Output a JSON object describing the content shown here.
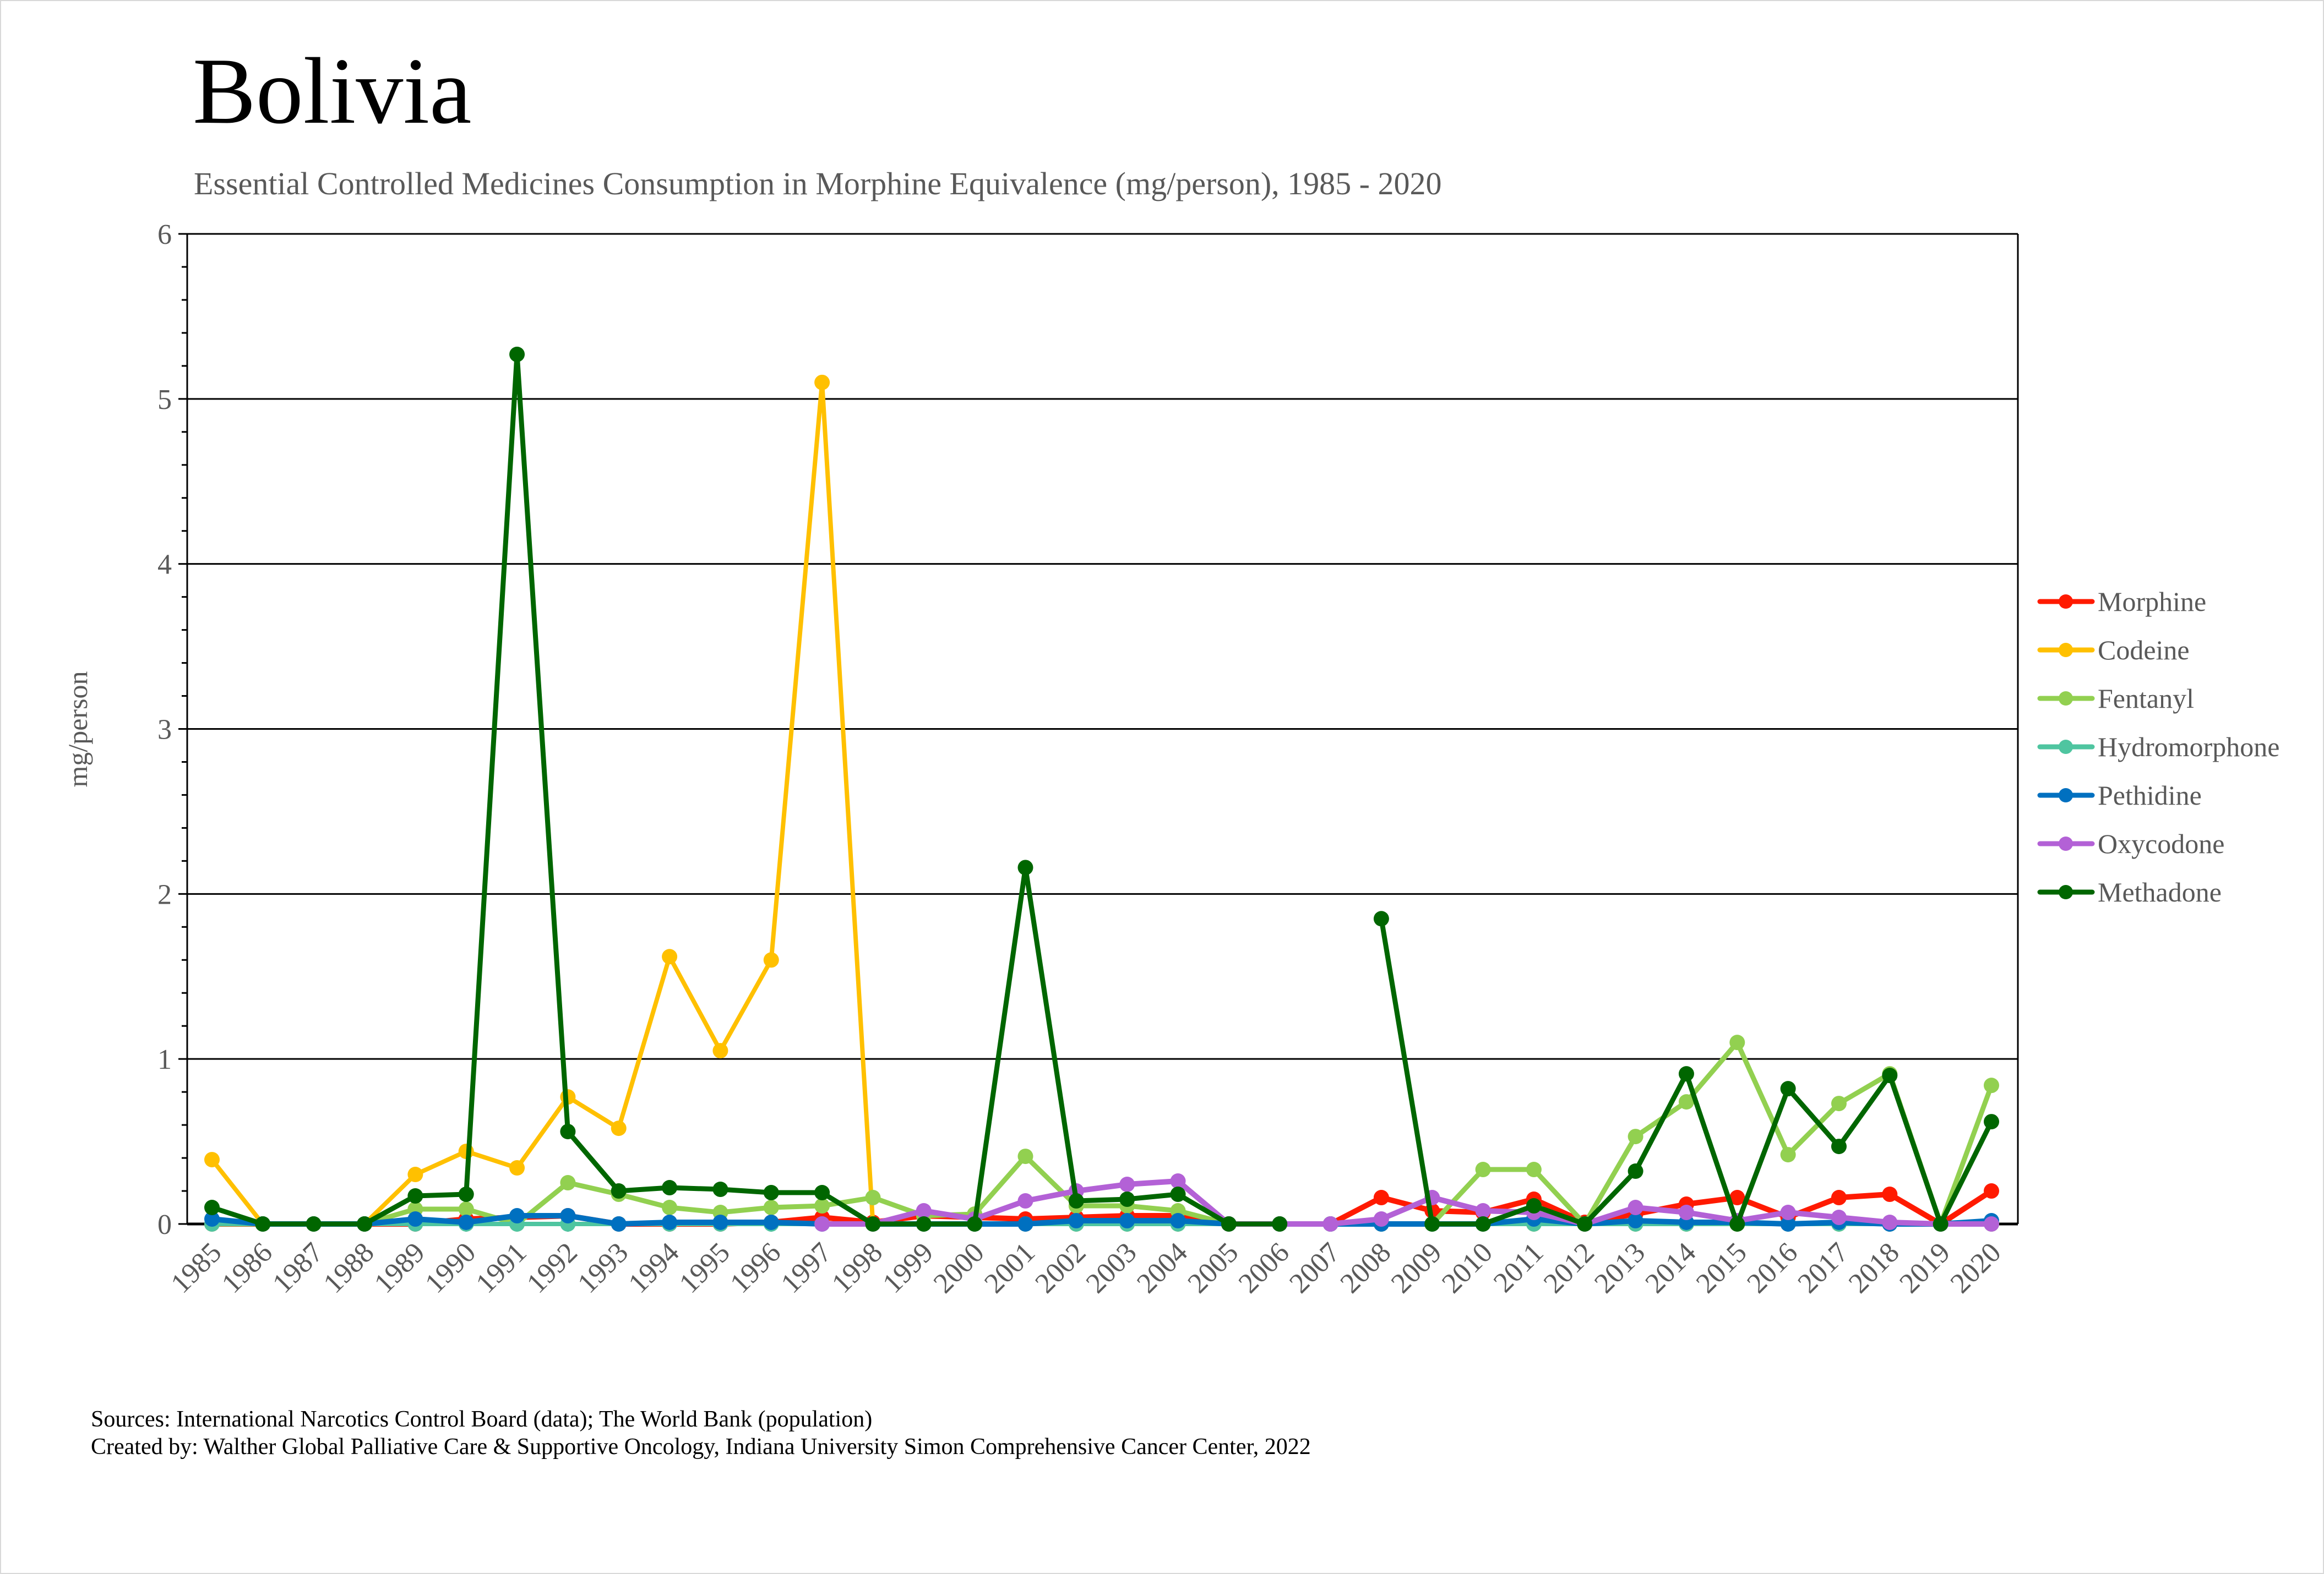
{
  "page": {
    "title": "Bolivia",
    "subtitle": "Essential Controlled Medicines Consumption in Morphine Equivalence (mg/person), 1985 - 2020",
    "footer_sources": "Sources: International Narcotics Control Board (data); The World Bank (population)",
    "footer_created": "Created by: Walther Global Palliative Care & Supportive Oncology, Indiana University Simon Comprehensive Cancer Center, 2022"
  },
  "chart_data": {
    "type": "line",
    "title": "Bolivia",
    "subtitle": "Essential Controlled Medicines Consumption in Morphine Equivalence (mg/person), 1985 - 2020",
    "xlabel": "",
    "ylabel": "mg/person",
    "ylim": [
      0,
      6
    ],
    "yticks": [
      "0",
      "1",
      "2",
      "3",
      "4",
      "5",
      "6"
    ],
    "grid": "horizontal major",
    "legend": "right",
    "x": [
      "1985",
      "1986",
      "1987",
      "1988",
      "1989",
      "1990",
      "1991",
      "1992",
      "1993",
      "1994",
      "1995",
      "1996",
      "1997",
      "1998",
      "1999",
      "2000",
      "2001",
      "2002",
      "2003",
      "2004",
      "2005",
      "2006",
      "2007",
      "2008",
      "2009",
      "2010",
      "2011",
      "2012",
      "2013",
      "2014",
      "2015",
      "2016",
      "2017",
      "2018",
      "2019",
      "2020"
    ],
    "series": [
      {
        "name": "Morphine",
        "color": "#ff1a00",
        "values": [
          0,
          0,
          0,
          0,
          0,
          0.03,
          0.04,
          0.05,
          0,
          0,
          0,
          0.01,
          0.04,
          0.01,
          0.05,
          0.04,
          0.03,
          0.04,
          0.05,
          0.05,
          0,
          0,
          0,
          0.16,
          0.08,
          0.07,
          0.15,
          0.01,
          0.06,
          0.12,
          0.16,
          0.04,
          0.16,
          0.18,
          0,
          0.2
        ]
      },
      {
        "name": "Codeine",
        "color": "#ffc000",
        "values": [
          0.39,
          0,
          0,
          0,
          0.3,
          0.44,
          0.34,
          0.77,
          0.58,
          1.62,
          1.05,
          1.6,
          5.1,
          0,
          0,
          0,
          0,
          0,
          0,
          0,
          0,
          0,
          0,
          0,
          0,
          0,
          0,
          0,
          0,
          0,
          0,
          0,
          0,
          0,
          0,
          0
        ]
      },
      {
        "name": "Fentanyl",
        "color": "#92d050",
        "values": [
          0,
          0,
          0,
          0,
          0.09,
          0.09,
          0,
          0.25,
          0.18,
          0.1,
          0.07,
          0.1,
          0.11,
          0.16,
          0.05,
          0.06,
          0.41,
          0.11,
          0.11,
          0.08,
          0,
          0,
          0,
          0,
          0,
          0.33,
          0.33,
          0,
          0.53,
          0.74,
          1.1,
          0.42,
          0.73,
          0.91,
          0,
          0.84
        ]
      },
      {
        "name": "Hydromorphone",
        "color": "#4fc5a0",
        "values": [
          0,
          0,
          0,
          0,
          0,
          0,
          0,
          0,
          0,
          0,
          0,
          0,
          0,
          0,
          0,
          0,
          0,
          0,
          0,
          0,
          0,
          0,
          0,
          0,
          0,
          0,
          0,
          0,
          0,
          0,
          0,
          0,
          0,
          0,
          0,
          0
        ]
      },
      {
        "name": "Pethidine",
        "color": "#0070c0",
        "values": [
          0.03,
          0,
          0,
          0,
          0.03,
          0.01,
          0.05,
          0.05,
          0,
          0.01,
          0.01,
          0.01,
          0,
          0,
          0,
          0,
          0,
          0.02,
          0.02,
          0.02,
          0,
          0,
          0,
          0,
          0,
          0,
          0.03,
          0,
          0.02,
          0.01,
          0.01,
          0,
          0.01,
          0,
          0,
          0.02
        ]
      },
      {
        "name": "Oxycodone",
        "color": "#b361d6",
        "values": [
          null,
          null,
          null,
          null,
          null,
          null,
          null,
          null,
          null,
          null,
          null,
          null,
          0,
          0,
          0.08,
          0.03,
          0.14,
          0.2,
          0.24,
          0.26,
          0,
          0,
          0,
          0.03,
          0.16,
          0.08,
          0.07,
          0,
          0.1,
          0.07,
          0.02,
          0.07,
          0.04,
          0.01,
          0,
          0
        ]
      },
      {
        "name": "Methadone",
        "color": "#006600",
        "values": [
          0.1,
          0,
          0,
          0,
          0.17,
          0.18,
          5.27,
          0.56,
          0.2,
          0.22,
          0.21,
          0.19,
          0.19,
          0,
          0,
          0,
          2.16,
          0.14,
          0.15,
          0.18,
          0,
          0,
          null,
          1.85,
          0,
          0,
          0.11,
          0,
          0.32,
          0.91,
          0,
          0.82,
          0.47,
          0.9,
          0,
          0.62
        ]
      }
    ]
  }
}
